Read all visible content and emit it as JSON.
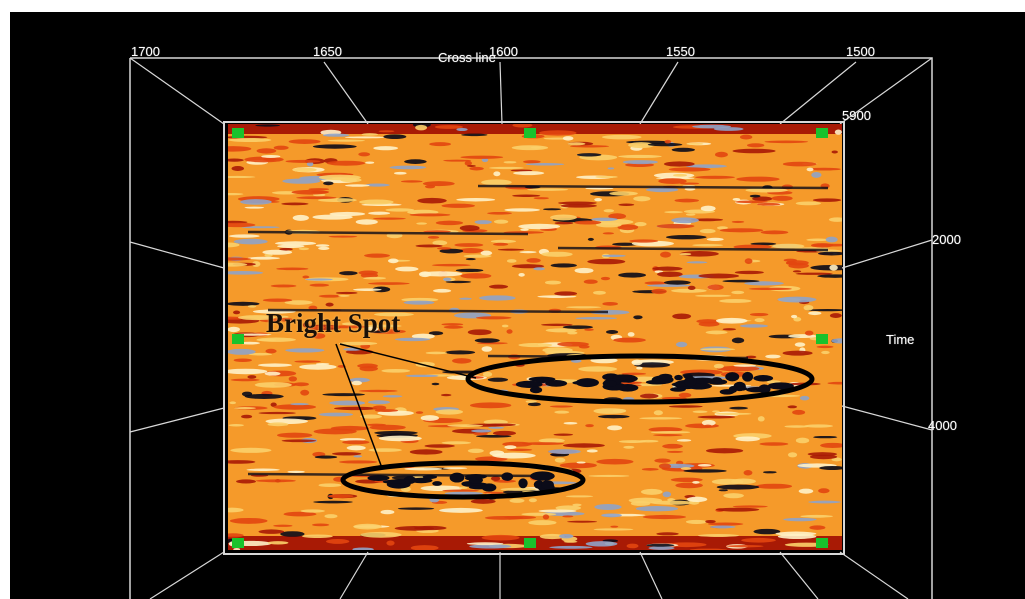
{
  "view": {
    "crossline_axis": {
      "title": "Cross line",
      "ticks": [
        "1700",
        "1650",
        "1600",
        "1550",
        "1500"
      ]
    },
    "time_axis": {
      "title": "Time",
      "ticks": [
        "5900",
        "2000",
        "4000"
      ]
    },
    "annotation": {
      "label": "Bright Spot"
    },
    "colors": {
      "background": "#000000",
      "wireframe": "#d8d8d8",
      "handle": "#19c22c",
      "seismic_palette": [
        "#a81a05",
        "#e2460f",
        "#f59a2a",
        "#fbd06a",
        "#fff2c8",
        "#8fa3c8",
        "#0b0b18"
      ],
      "ellipse": "#000000"
    }
  }
}
